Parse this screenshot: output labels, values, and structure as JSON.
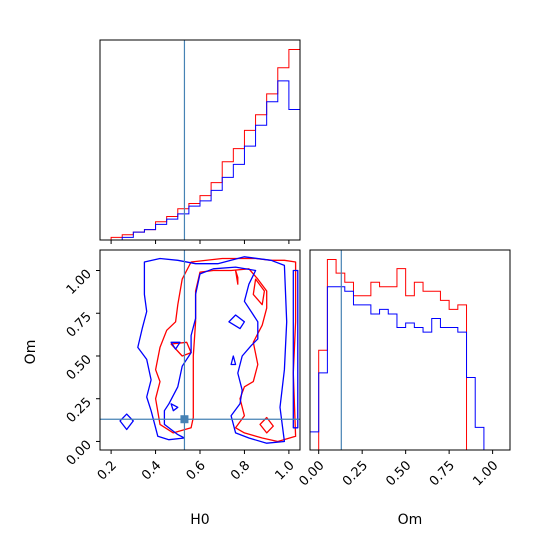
{
  "chart_data": {
    "type": "corner",
    "parameters": [
      "H0",
      "Om"
    ],
    "truth": {
      "H0": 0.53,
      "Om": 0.13
    },
    "colors": {
      "red": "#ff0000",
      "blue": "#0000ff",
      "truth": "#4682b4"
    },
    "h0_hist": {
      "panel": "top-left",
      "x_range": [
        0.15,
        1.05
      ],
      "bins": [
        0.15,
        0.2,
        0.25,
        0.3,
        0.35,
        0.4,
        0.45,
        0.5,
        0.55,
        0.6,
        0.65,
        0.7,
        0.75,
        0.8,
        0.85,
        0.9,
        0.95,
        1.0,
        1.05
      ],
      "series": [
        {
          "color": "red",
          "counts": [
            0,
            1,
            2,
            3,
            4,
            7,
            9,
            12,
            14,
            17,
            22,
            30,
            35,
            42,
            48,
            56,
            66,
            73,
            0
          ]
        },
        {
          "color": "blue",
          "counts": [
            0,
            0,
            1,
            3,
            4,
            6,
            8,
            10,
            13,
            15,
            19,
            24,
            29,
            36,
            44,
            53,
            61,
            50,
            0
          ]
        }
      ]
    },
    "om_hist": {
      "panel": "bottom-right",
      "x_range": [
        -0.05,
        1.1
      ],
      "bins": [
        -0.05,
        0.0,
        0.05,
        0.1,
        0.15,
        0.2,
        0.25,
        0.3,
        0.35,
        0.4,
        0.45,
        0.5,
        0.55,
        0.6,
        0.65,
        0.7,
        0.75,
        0.8,
        0.85,
        0.9,
        0.95,
        1.0,
        1.05,
        1.1
      ],
      "series": [
        {
          "color": "red",
          "counts": [
            0,
            22,
            42,
            39,
            37,
            34,
            34,
            37,
            36,
            36,
            40,
            34,
            37,
            35,
            35,
            33,
            31,
            32,
            0,
            0,
            0,
            0,
            0
          ]
        },
        {
          "color": "blue",
          "counts": [
            4,
            17,
            36,
            36,
            35,
            32,
            32,
            30,
            31,
            30,
            27,
            28,
            27,
            26,
            29,
            27,
            27,
            26,
            16,
            5,
            0,
            0,
            0
          ]
        }
      ]
    },
    "contours": {
      "panel": "bottom-left",
      "x_range": [
        0.15,
        1.05
      ],
      "y_range": [
        -0.05,
        1.12
      ],
      "series": [
        {
          "color": "red",
          "paths": [
            [
              [
                0.56,
                1.05
              ],
              [
                0.7,
                1.07
              ],
              [
                0.85,
                1.07
              ],
              [
                0.92,
                1.06
              ],
              [
                0.98,
                1.06
              ],
              [
                1.03,
                1.05
              ],
              [
                1.03,
                0.7
              ],
              [
                1.02,
                0.4
              ],
              [
                1.03,
                0.03
              ],
              [
                0.95,
                0.0
              ],
              [
                0.88,
                0.02
              ],
              [
                0.8,
                0.05
              ],
              [
                0.76,
                0.08
              ],
              [
                0.8,
                0.15
              ],
              [
                0.78,
                0.25
              ],
              [
                0.8,
                0.32
              ],
              [
                0.84,
                0.35
              ],
              [
                0.86,
                0.45
              ],
              [
                0.84,
                0.58
              ],
              [
                0.88,
                0.68
              ],
              [
                0.9,
                0.78
              ],
              [
                0.9,
                0.88
              ],
              [
                0.86,
                0.95
              ],
              [
                0.82,
                1.01
              ],
              [
                0.74,
                1.0
              ],
              [
                0.66,
                1.0
              ],
              [
                0.6,
                0.99
              ],
              [
                0.58,
                0.88
              ],
              [
                0.58,
                0.7
              ],
              [
                0.57,
                0.5
              ],
              [
                0.57,
                0.3
              ],
              [
                0.57,
                0.14
              ],
              [
                0.56,
                0.08
              ],
              [
                0.48,
                0.05
              ],
              [
                0.42,
                0.1
              ],
              [
                0.4,
                0.25
              ],
              [
                0.42,
                0.35
              ],
              [
                0.4,
                0.42
              ],
              [
                0.42,
                0.55
              ],
              [
                0.45,
                0.65
              ],
              [
                0.49,
                0.7
              ],
              [
                0.5,
                0.8
              ],
              [
                0.52,
                0.95
              ],
              [
                0.56,
                1.05
              ]
            ],
            [
              [
                0.47,
                0.57
              ],
              [
                0.52,
                0.5
              ],
              [
                0.56,
                0.52
              ],
              [
                0.54,
                0.58
              ],
              [
                0.47,
                0.57
              ]
            ],
            [
              [
                0.76,
                1.0
              ],
              [
                0.77,
                0.96
              ],
              [
                0.77,
                0.92
              ],
              [
                0.76,
                1.0
              ]
            ],
            [
              [
                0.85,
                0.95
              ],
              [
                0.89,
                0.88
              ],
              [
                0.88,
                0.8
              ],
              [
                0.84,
                0.86
              ],
              [
                0.85,
                0.95
              ]
            ],
            [
              [
                0.87,
                0.1
              ],
              [
                0.9,
                0.05
              ],
              [
                0.93,
                0.09
              ],
              [
                0.9,
                0.14
              ],
              [
                0.87,
                0.1
              ]
            ]
          ]
        },
        {
          "color": "blue",
          "paths": [
            [
              [
                0.35,
                1.05
              ],
              [
                0.42,
                1.07
              ],
              [
                0.5,
                1.06
              ],
              [
                0.58,
                1.04
              ],
              [
                0.68,
                1.04
              ],
              [
                0.8,
                1.08
              ],
              [
                0.92,
                1.06
              ],
              [
                0.98,
                1.03
              ],
              [
                0.99,
                0.7
              ],
              [
                0.98,
                0.42
              ],
              [
                0.96,
                0.2
              ],
              [
                0.98,
                0.0
              ],
              [
                0.9,
                -0.01
              ],
              [
                0.82,
                0.02
              ],
              [
                0.76,
                0.05
              ],
              [
                0.74,
                0.15
              ],
              [
                0.78,
                0.22
              ],
              [
                0.79,
                0.3
              ],
              [
                0.77,
                0.4
              ],
              [
                0.79,
                0.5
              ],
              [
                0.83,
                0.56
              ],
              [
                0.86,
                0.6
              ],
              [
                0.86,
                0.7
              ],
              [
                0.83,
                0.76
              ],
              [
                0.8,
                0.82
              ],
              [
                0.82,
                0.92
              ],
              [
                0.85,
                1.0
              ],
              [
                0.76,
                1.02
              ],
              [
                0.66,
                1.01
              ],
              [
                0.6,
                0.98
              ],
              [
                0.58,
                0.86
              ],
              [
                0.58,
                0.72
              ],
              [
                0.56,
                0.62
              ],
              [
                0.56,
                0.52
              ],
              [
                0.52,
                0.44
              ],
              [
                0.5,
                0.32
              ],
              [
                0.46,
                0.22
              ],
              [
                0.44,
                0.18
              ],
              [
                0.44,
                0.1
              ],
              [
                0.5,
                0.04
              ],
              [
                0.53,
                0.02
              ],
              [
                0.46,
                0.01
              ],
              [
                0.41,
                0.03
              ],
              [
                0.4,
                0.08
              ],
              [
                0.38,
                0.18
              ],
              [
                0.36,
                0.26
              ],
              [
                0.38,
                0.36
              ],
              [
                0.36,
                0.48
              ],
              [
                0.32,
                0.55
              ],
              [
                0.34,
                0.66
              ],
              [
                0.36,
                0.76
              ],
              [
                0.35,
                0.86
              ],
              [
                0.35,
                1.05
              ]
            ],
            [
              [
                0.24,
                0.12
              ],
              [
                0.27,
                0.07
              ],
              [
                0.3,
                0.12
              ],
              [
                0.27,
                0.16
              ],
              [
                0.24,
                0.12
              ]
            ],
            [
              [
                0.47,
                0.22
              ],
              [
                0.48,
                0.18
              ],
              [
                0.5,
                0.2
              ],
              [
                0.47,
                0.22
              ]
            ],
            [
              [
                0.47,
                0.58
              ],
              [
                0.49,
                0.54
              ],
              [
                0.51,
                0.58
              ],
              [
                0.47,
                0.58
              ]
            ],
            [
              [
                0.73,
                0.7
              ],
              [
                0.78,
                0.66
              ],
              [
                0.8,
                0.7
              ],
              [
                0.76,
                0.74
              ],
              [
                0.73,
                0.7
              ]
            ],
            [
              [
                0.74,
                0.45
              ],
              [
                0.75,
                0.5
              ],
              [
                0.76,
                0.45
              ],
              [
                0.74,
                0.45
              ]
            ],
            [
              [
                1.02,
                1.0
              ],
              [
                1.04,
                1.0
              ],
              [
                1.04,
                0.08
              ],
              [
                1.02,
                0.08
              ],
              [
                1.02,
                1.0
              ]
            ]
          ]
        }
      ]
    },
    "x_ticks_h0": [
      "0.2",
      "0.4",
      "0.6",
      "0.8",
      "1.0"
    ],
    "x_tick_values_h0": [
      0.2,
      0.4,
      0.6,
      0.8,
      1.0
    ],
    "y_ticks_om": [
      "0.00",
      "0.25",
      "0.50",
      "0.75",
      "1.00"
    ],
    "y_tick_values_om": [
      0.0,
      0.25,
      0.5,
      0.75,
      1.0
    ],
    "x_ticks_om": [
      "0.00",
      "0.25",
      "0.50",
      "0.75",
      "1.00"
    ],
    "x_tick_values_om": [
      0.0,
      0.25,
      0.5,
      0.75,
      1.0
    ],
    "top_hist_tick_values": [
      0.2,
      0.4,
      0.6,
      0.8,
      1.0
    ],
    "xlabel_h0": "H0",
    "ylabel_om": "Om",
    "xlabel_om": "Om"
  }
}
